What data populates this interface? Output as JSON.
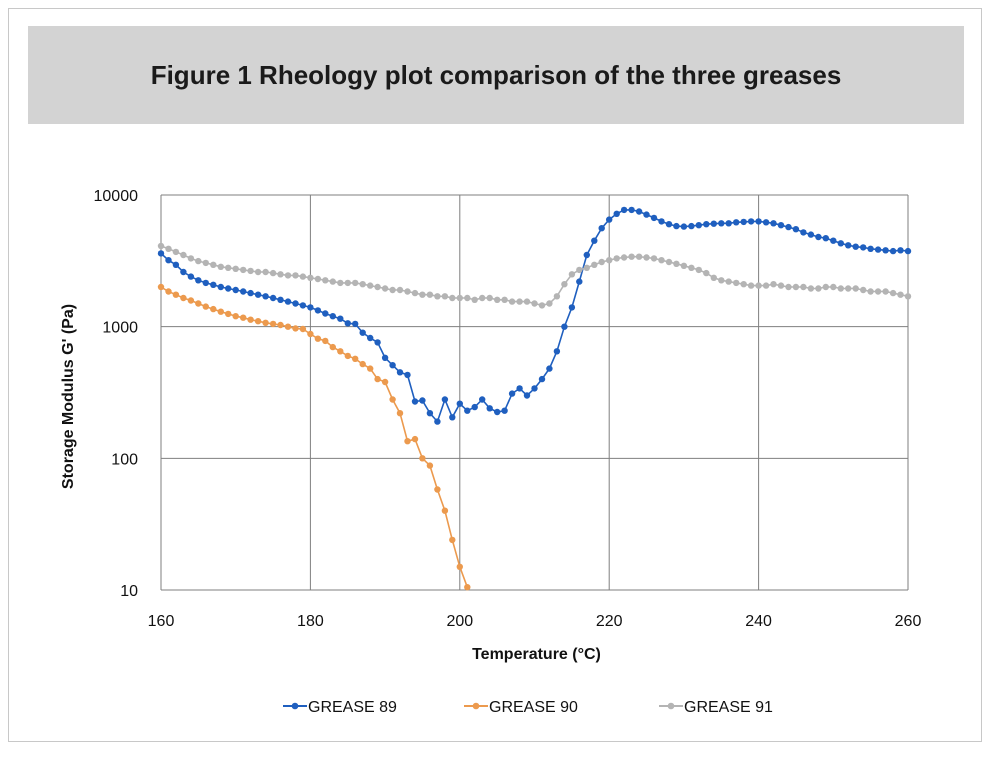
{
  "chart_data": {
    "type": "line",
    "title": "Figure 1 Rheology plot comparison of the three greases",
    "xlabel": "Temperature (°C)",
    "ylabel": "Storage Modulus G' (Pa)",
    "xlim": [
      160,
      260
    ],
    "ylim": [
      10,
      10000
    ],
    "yscale": "log",
    "xticks": [
      "160",
      "180",
      "200",
      "220",
      "240",
      "260"
    ],
    "yticks": [
      "10",
      "100",
      "1000",
      "10000"
    ],
    "grid": true,
    "legend": "bottom",
    "series": [
      {
        "name": "GREASE 89",
        "color": "#1f5fbf",
        "x": [
          160,
          161,
          162,
          163,
          164,
          165,
          166,
          167,
          168,
          169,
          170,
          171,
          172,
          173,
          174,
          175,
          176,
          177,
          178,
          179,
          180,
          181,
          182,
          183,
          184,
          185,
          186,
          187,
          188,
          189,
          190,
          191,
          192,
          193,
          194,
          195,
          196,
          197,
          198,
          199,
          200,
          201,
          202,
          203,
          204,
          205,
          206,
          207,
          208,
          209,
          210,
          211,
          212,
          213,
          214,
          215,
          216,
          217,
          218,
          219,
          220,
          221,
          222,
          223,
          224,
          225,
          226,
          227,
          228,
          229,
          230,
          231,
          232,
          233,
          234,
          235,
          236,
          237,
          238,
          239,
          240,
          241,
          242,
          243,
          244,
          245,
          246,
          247,
          248,
          249,
          250,
          251,
          252,
          253,
          254,
          255,
          256,
          257,
          258,
          259,
          260
        ],
        "values": [
          3600,
          3200,
          2950,
          2600,
          2400,
          2250,
          2150,
          2080,
          2000,
          1950,
          1900,
          1850,
          1800,
          1750,
          1700,
          1650,
          1600,
          1550,
          1500,
          1450,
          1400,
          1330,
          1260,
          1200,
          1150,
          1060,
          1050,
          900,
          820,
          760,
          580,
          510,
          450,
          430,
          270,
          275,
          220,
          190,
          280,
          205,
          260,
          230,
          245,
          280,
          240,
          225,
          230,
          310,
          340,
          300,
          340,
          400,
          480,
          650,
          1000,
          1400,
          2200,
          3500,
          4500,
          5600,
          6500,
          7200,
          7700,
          7700,
          7500,
          7100,
          6700,
          6300,
          6000,
          5800,
          5750,
          5800,
          5900,
          6000,
          6050,
          6100,
          6100,
          6200,
          6250,
          6300,
          6300,
          6200,
          6100,
          5900,
          5700,
          5500,
          5200,
          5000,
          4800,
          4700,
          4500,
          4300,
          4150,
          4050,
          4000,
          3900,
          3850,
          3800,
          3750,
          3800,
          3750
        ]
      },
      {
        "name": "GREASE 90",
        "color": "#ec9a4e",
        "x": [
          160,
          161,
          162,
          163,
          164,
          165,
          166,
          167,
          168,
          169,
          170,
          171,
          172,
          173,
          174,
          175,
          176,
          177,
          178,
          179,
          180,
          181,
          182,
          183,
          184,
          185,
          186,
          187,
          188,
          189,
          190,
          191,
          192,
          193,
          194,
          195,
          196,
          197,
          198,
          199,
          200,
          201
        ],
        "values": [
          2000,
          1850,
          1750,
          1650,
          1580,
          1500,
          1420,
          1360,
          1300,
          1250,
          1200,
          1170,
          1130,
          1100,
          1070,
          1050,
          1030,
          1000,
          970,
          960,
          880,
          810,
          780,
          700,
          650,
          600,
          570,
          520,
          480,
          400,
          380,
          280,
          220,
          135,
          140,
          100,
          88,
          58,
          40,
          24,
          15,
          10.5
        ]
      },
      {
        "name": "GREASE 91",
        "color": "#b4b4b4",
        "x": [
          160,
          161,
          162,
          163,
          164,
          165,
          166,
          167,
          168,
          169,
          170,
          171,
          172,
          173,
          174,
          175,
          176,
          177,
          178,
          179,
          180,
          181,
          182,
          183,
          184,
          185,
          186,
          187,
          188,
          189,
          190,
          191,
          192,
          193,
          194,
          195,
          196,
          197,
          198,
          199,
          200,
          201,
          202,
          203,
          204,
          205,
          206,
          207,
          208,
          209,
          210,
          211,
          212,
          213,
          214,
          215,
          216,
          217,
          218,
          219,
          220,
          221,
          222,
          223,
          224,
          225,
          226,
          227,
          228,
          229,
          230,
          231,
          232,
          233,
          234,
          235,
          236,
          237,
          238,
          239,
          240,
          241,
          242,
          243,
          244,
          245,
          246,
          247,
          248,
          249,
          250,
          251,
          252,
          253,
          254,
          255,
          256,
          257,
          258,
          259,
          260
        ],
        "values": [
          4100,
          3900,
          3700,
          3500,
          3300,
          3150,
          3050,
          2950,
          2850,
          2800,
          2750,
          2700,
          2650,
          2600,
          2600,
          2550,
          2500,
          2450,
          2450,
          2400,
          2350,
          2300,
          2250,
          2200,
          2150,
          2150,
          2150,
          2100,
          2050,
          2000,
          1950,
          1900,
          1900,
          1850,
          1800,
          1750,
          1750,
          1700,
          1700,
          1650,
          1650,
          1650,
          1600,
          1650,
          1650,
          1600,
          1600,
          1550,
          1550,
          1550,
          1500,
          1450,
          1500,
          1700,
          2100,
          2500,
          2700,
          2800,
          2950,
          3100,
          3200,
          3300,
          3350,
          3400,
          3400,
          3350,
          3300,
          3200,
          3100,
          3000,
          2900,
          2800,
          2700,
          2550,
          2350,
          2250,
          2200,
          2150,
          2100,
          2050,
          2050,
          2050,
          2100,
          2050,
          2000,
          2000,
          2000,
          1950,
          1950,
          2000,
          2000,
          1950,
          1950,
          1950,
          1900,
          1850,
          1850,
          1850,
          1800,
          1750,
          1700
        ]
      }
    ]
  }
}
